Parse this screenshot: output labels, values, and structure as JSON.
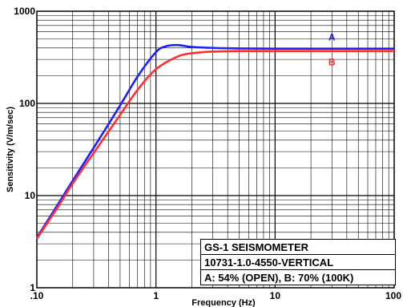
{
  "chart_data": {
    "type": "line",
    "xscale": "log",
    "yscale": "log",
    "xlim": [
      0.1,
      100
    ],
    "ylim": [
      1,
      1000
    ],
    "xlabel": "Frequency (Hz)",
    "ylabel": "Sensitivity (V/m/sec)",
    "x_tick_labels": [
      ".10",
      "1",
      "10",
      "100"
    ],
    "y_tick_labels": [
      "1",
      "10",
      "100",
      "1000"
    ],
    "grid": true,
    "series": [
      {
        "name": "A",
        "color": "#2020ff",
        "x": [
          0.1,
          0.15,
          0.2,
          0.3,
          0.5,
          0.7,
          1.0,
          1.2,
          1.5,
          2.0,
          3.0,
          5.0,
          10,
          30,
          100
        ],
        "y": [
          3.5,
          8,
          14.5,
          33,
          95,
          195,
          360,
          415,
          430,
          410,
          400,
          395,
          393,
          393,
          393
        ]
      },
      {
        "name": "B",
        "color": "#ff3030",
        "x": [
          0.1,
          0.15,
          0.2,
          0.3,
          0.5,
          0.7,
          1.0,
          1.5,
          2.0,
          3.0,
          5.0,
          10,
          30,
          100
        ],
        "y": [
          3.4,
          7.5,
          13.5,
          29,
          75,
          140,
          235,
          320,
          350,
          365,
          370,
          370,
          370,
          370
        ]
      }
    ],
    "annotation_lines": [
      "GS-1 SEISMOMETER",
      "10731-1.0-4550-VERTICAL",
      "A: 54% (OPEN),  B: 70% (100K)"
    ]
  }
}
